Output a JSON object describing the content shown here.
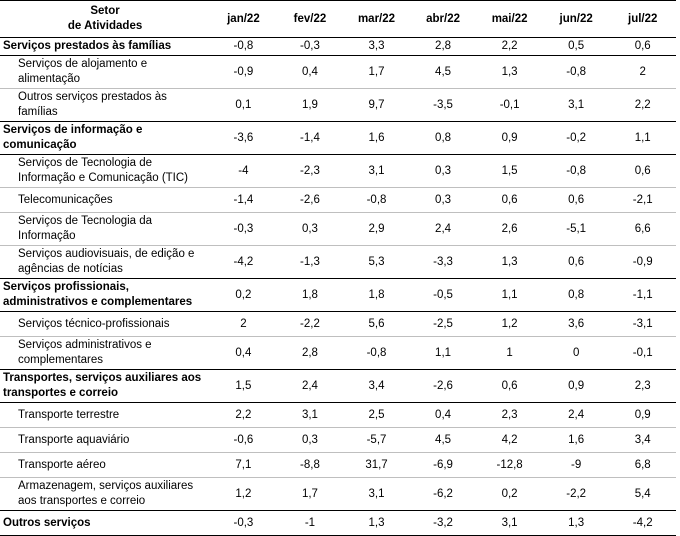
{
  "header": {
    "sector_line1": "Setor",
    "sector_line2": "de Atividades",
    "months": [
      "jan/22",
      "fev/22",
      "mar/22",
      "abr/22",
      "mai/22",
      "jun/22",
      "jul/22"
    ]
  },
  "rows": [
    {
      "label": "Serviços prestados às famílias",
      "values": [
        "-0,8",
        "-0,3",
        "3,3",
        "2,8",
        "2,2",
        "0,5",
        "0,6"
      ]
    },
    {
      "label": "Serviços de alojamento e alimentação",
      "values": [
        "-0,9",
        "0,4",
        "1,7",
        "4,5",
        "1,3",
        "-0,8",
        "2"
      ]
    },
    {
      "label": "Outros serviços prestados às famílias",
      "values": [
        "0,1",
        "1,9",
        "9,7",
        "-3,5",
        "-0,1",
        "3,1",
        "2,2"
      ]
    },
    {
      "label": "Serviços de informação e comunicação",
      "values": [
        "-3,6",
        "-1,4",
        "1,6",
        "0,8",
        "0,9",
        "-0,2",
        "1,1"
      ]
    },
    {
      "label": "Serviços de Tecnologia de Informação e Comunicação (TIC)",
      "values": [
        "-4",
        "-2,3",
        "3,1",
        "0,3",
        "1,5",
        "-0,8",
        "0,6"
      ]
    },
    {
      "label": "Telecomunicações",
      "values": [
        "-1,4",
        "-2,6",
        "-0,8",
        "0,3",
        "0,6",
        "0,6",
        "-2,1"
      ]
    },
    {
      "label": "Serviços de Tecnologia da Informação",
      "values": [
        "-0,3",
        "0,3",
        "2,9",
        "2,4",
        "2,6",
        "-5,1",
        "6,6"
      ]
    },
    {
      "label": "Serviços audiovisuais, de edição e agências de notícias",
      "values": [
        "-4,2",
        "-1,3",
        "5,3",
        "-3,3",
        "1,3",
        "0,6",
        "-0,9"
      ]
    },
    {
      "label": "Serviços profissionais, administrativos e complementares",
      "values": [
        "0,2",
        "1,8",
        "1,8",
        "-0,5",
        "1,1",
        "0,8",
        "-1,1"
      ]
    },
    {
      "label": "Serviços técnico-profissionais",
      "values": [
        "2",
        "-2,2",
        "5,6",
        "-2,5",
        "1,2",
        "3,6",
        "-3,1"
      ]
    },
    {
      "label": "Serviços administrativos e complementares",
      "values": [
        "0,4",
        "2,8",
        "-0,8",
        "1,1",
        "1",
        "0",
        "-0,1"
      ]
    },
    {
      "label": "Transportes, serviços auxiliares aos transportes e correio",
      "values": [
        "1,5",
        "2,4",
        "3,4",
        "-2,6",
        "0,6",
        "0,9",
        "2,3"
      ]
    },
    {
      "label": "Transporte terrestre",
      "values": [
        "2,2",
        "3,1",
        "2,5",
        "0,4",
        "2,3",
        "2,4",
        "0,9"
      ]
    },
    {
      "label": "Transporte aquaviário",
      "values": [
        "-0,6",
        "0,3",
        "-5,7",
        "4,5",
        "4,2",
        "1,6",
        "3,4"
      ]
    },
    {
      "label": "Transporte aéreo",
      "values": [
        "7,1",
        "-8,8",
        "31,7",
        "-6,9",
        "-12,8",
        "-9",
        "6,8"
      ]
    },
    {
      "label": "Armazenagem, serviços auxiliares aos transportes e correio",
      "values": [
        "1,2",
        "1,7",
        "3,1",
        "-6,2",
        "0,2",
        "-2,2",
        "5,4"
      ]
    },
    {
      "label": "Outros serviços",
      "values": [
        "-0,3",
        "-1",
        "1,3",
        "-3,2",
        "3,1",
        "1,3",
        "-4,2"
      ]
    }
  ]
}
